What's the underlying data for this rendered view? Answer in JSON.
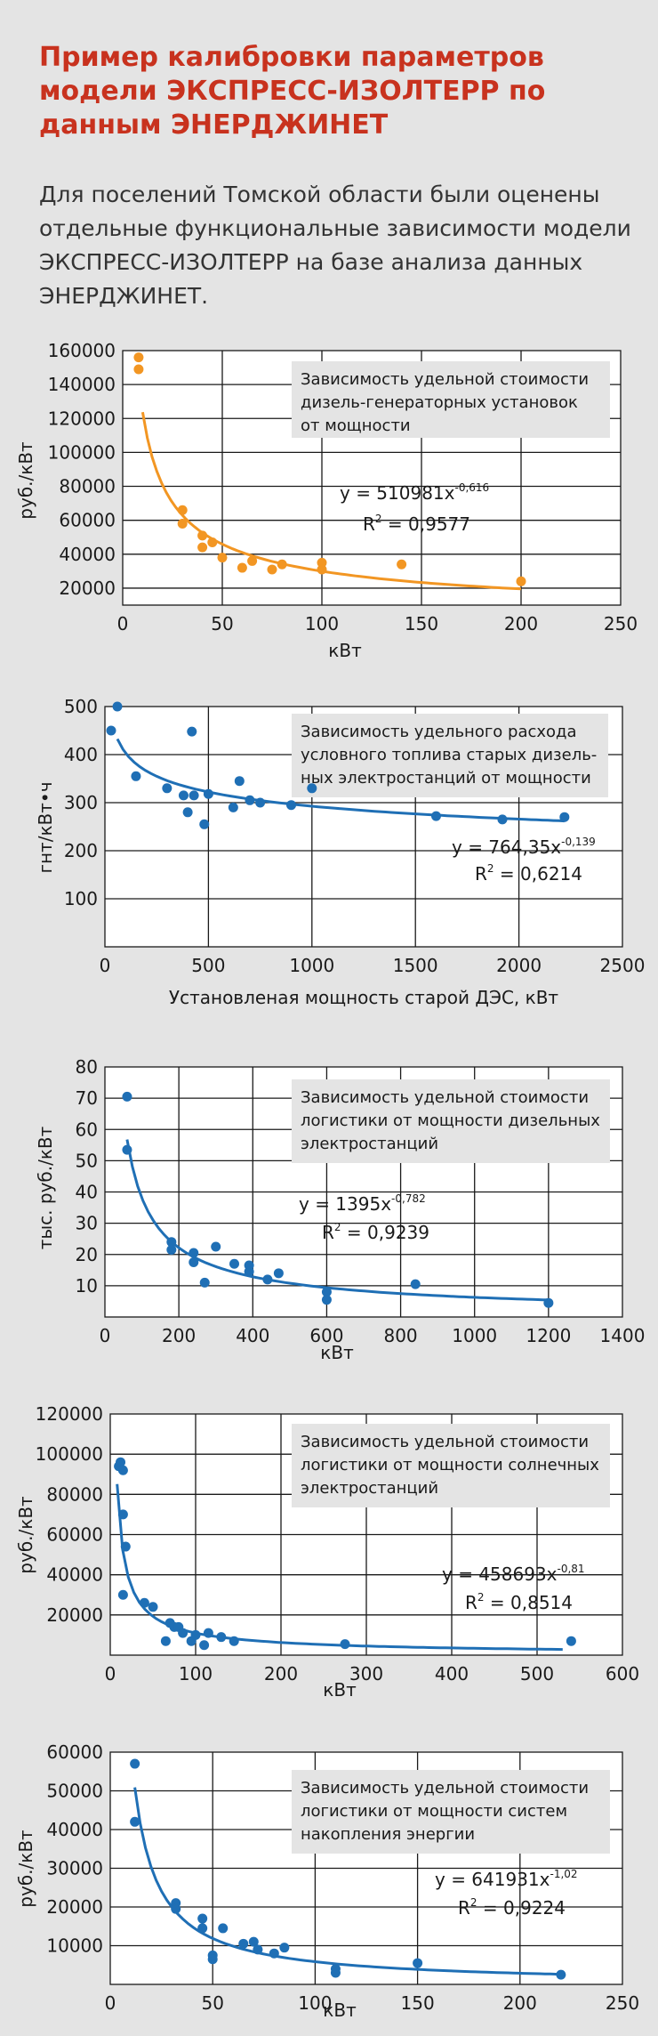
{
  "header": {
    "title": "Пример калибровки параметров модели ЭКСПРЕСС-ИЗОЛТЕРР по данным ЭНЕРДЖИНЕТ",
    "intro": "Для поселений Томской области были оценены отдельные функциональные зависимости модели ЭКСПРЕСС-ИЗОЛТЕРР на базе анализа данных ЭНЕРДЖИНЕТ."
  },
  "chart_data": [
    {
      "type": "scatter",
      "caption": [
        "Зависимость удельной стоимости",
        "дизель-генераторных установок",
        "от мощности"
      ],
      "equation": {
        "base": "y = 510981x",
        "exponent": "-0,616",
        "r2_label": "R",
        "r2_value": " = 0,9577"
      },
      "xlabel": "кВт",
      "ylabel": "руб./кВт",
      "xlim": [
        0,
        250
      ],
      "ylim": [
        10000,
        160000
      ],
      "xticks": [
        0,
        50,
        100,
        150,
        200,
        250
      ],
      "yticks": [
        20000,
        40000,
        60000,
        80000,
        100000,
        120000,
        140000,
        160000
      ],
      "color": "#f29623",
      "fit": {
        "a": 510981,
        "b": -0.616,
        "x_from": 10,
        "x_to": 200
      },
      "points": [
        [
          8,
          156000
        ],
        [
          8,
          149000
        ],
        [
          30,
          66000
        ],
        [
          30,
          58000
        ],
        [
          40,
          51000
        ],
        [
          40,
          44000
        ],
        [
          45,
          47000
        ],
        [
          50,
          38000
        ],
        [
          60,
          32000
        ],
        [
          65,
          36000
        ],
        [
          75,
          31000
        ],
        [
          80,
          34000
        ],
        [
          100,
          35000
        ],
        [
          100,
          31000
        ],
        [
          140,
          34000
        ],
        [
          200,
          24000
        ]
      ]
    },
    {
      "type": "scatter",
      "caption": [
        "Зависимость удельного расхода",
        "условного топлива старых дизель-",
        "ных электростанций от мощности"
      ],
      "equation": {
        "base": "y = 764,35x",
        "exponent": "-0,139",
        "r2_label": "R",
        "r2_value": " = 0,6214"
      },
      "xlabel": "Установленая мощность старой ДЭС, кВт",
      "ylabel": "гнт/кВт•ч",
      "xlim": [
        0,
        2500
      ],
      "ylim": [
        0,
        500
      ],
      "xticks": [
        0,
        500,
        1000,
        1500,
        2000,
        2500
      ],
      "yticks": [
        100,
        200,
        300,
        400,
        500
      ],
      "color": "#1f6fb5",
      "fit": {
        "a": 764.35,
        "b": -0.139,
        "x_from": 60,
        "x_to": 2220
      },
      "points": [
        [
          30,
          450
        ],
        [
          60,
          500
        ],
        [
          150,
          355
        ],
        [
          300,
          330
        ],
        [
          380,
          315
        ],
        [
          400,
          280
        ],
        [
          420,
          448
        ],
        [
          430,
          315
        ],
        [
          480,
          255
        ],
        [
          500,
          318
        ],
        [
          620,
          290
        ],
        [
          650,
          345
        ],
        [
          700,
          305
        ],
        [
          750,
          300
        ],
        [
          900,
          295
        ],
        [
          1000,
          330
        ],
        [
          1600,
          272
        ],
        [
          1920,
          265
        ],
        [
          2220,
          270
        ]
      ]
    },
    {
      "type": "scatter",
      "caption": [
        "Зависимость удельной стоимости",
        "логистики от мощности дизельных",
        "электростанций"
      ],
      "equation": {
        "base": "y = 1395x",
        "exponent": "-0,782",
        "r2_label": "R",
        "r2_value": " = 0,9239"
      },
      "xlabel": "кВт",
      "ylabel": "тыс. руб./кВт",
      "xlim": [
        0,
        1400
      ],
      "ylim": [
        0,
        80
      ],
      "xticks": [
        0,
        200,
        400,
        600,
        800,
        1000,
        1200,
        1400
      ],
      "yticks": [
        10,
        20,
        30,
        40,
        50,
        60,
        70,
        80
      ],
      "color": "#1f6fb5",
      "fit": {
        "a": 1395,
        "b": -0.782,
        "x_from": 60,
        "x_to": 1200
      },
      "points": [
        [
          60,
          70.5
        ],
        [
          60,
          53.5
        ],
        [
          180,
          24
        ],
        [
          180,
          21.5
        ],
        [
          240,
          20.5
        ],
        [
          240,
          17.5
        ],
        [
          270,
          11
        ],
        [
          300,
          22.5
        ],
        [
          350,
          17
        ],
        [
          390,
          16.5
        ],
        [
          390,
          14.5
        ],
        [
          440,
          12
        ],
        [
          470,
          14
        ],
        [
          600,
          8
        ],
        [
          600,
          5.5
        ],
        [
          840,
          10.5
        ],
        [
          1200,
          4.5
        ]
      ]
    },
    {
      "type": "scatter",
      "caption": [
        "Зависимость удельной стоимости",
        "логистики от мощности солнечных",
        "электростанций"
      ],
      "equation": {
        "base": "y = 458693x",
        "exponent": "-0,81",
        "r2_label": "R",
        "r2_value": " = 0,8514"
      },
      "xlabel": "кВт",
      "ylabel": "руб./кВт",
      "xlim": [
        0,
        600
      ],
      "ylim": [
        0,
        120000
      ],
      "xticks": [
        0,
        100,
        200,
        300,
        400,
        500,
        600
      ],
      "yticks": [
        20000,
        40000,
        60000,
        80000,
        100000,
        120000
      ],
      "color": "#1f6fb5",
      "fit": {
        "a": 458693,
        "b": -0.81,
        "x_from": 8,
        "x_to": 530
      },
      "points": [
        [
          10,
          94000
        ],
        [
          12,
          96000
        ],
        [
          15,
          92000
        ],
        [
          15,
          70000
        ],
        [
          15,
          30000
        ],
        [
          18,
          54000
        ],
        [
          40,
          26000
        ],
        [
          50,
          24000
        ],
        [
          65,
          7000
        ],
        [
          70,
          16000
        ],
        [
          75,
          14000
        ],
        [
          80,
          14000
        ],
        [
          85,
          11000
        ],
        [
          95,
          7000
        ],
        [
          100,
          10000
        ],
        [
          110,
          5000
        ],
        [
          115,
          11000
        ],
        [
          130,
          9000
        ],
        [
          145,
          7000
        ],
        [
          275,
          5500
        ],
        [
          540,
          7000
        ]
      ]
    },
    {
      "type": "scatter",
      "caption": [
        "Зависимость удельной стоимости",
        "логистики от мощности систем",
        "накопления энергии"
      ],
      "equation": {
        "base": "y = 641931x",
        "exponent": "-1,02",
        "r2_label": "R",
        "r2_value": " = 0,9224"
      },
      "xlabel": "кВт",
      "ylabel": "руб./кВт",
      "xlim": [
        0,
        250
      ],
      "ylim": [
        0,
        60000
      ],
      "xticks": [
        0,
        50,
        100,
        150,
        200,
        250
      ],
      "yticks": [
        10000,
        20000,
        30000,
        40000,
        50000,
        60000
      ],
      "color": "#1f6fb5",
      "fit": {
        "a": 641931,
        "b": -1.02,
        "x_from": 12,
        "x_to": 220
      },
      "points": [
        [
          12,
          57000
        ],
        [
          12,
          42000
        ],
        [
          32,
          21000
        ],
        [
          32,
          19500
        ],
        [
          45,
          17000
        ],
        [
          45,
          14500
        ],
        [
          50,
          7500
        ],
        [
          50,
          6500
        ],
        [
          55,
          14500
        ],
        [
          65,
          10500
        ],
        [
          70,
          11000
        ],
        [
          72,
          9000
        ],
        [
          80,
          8000
        ],
        [
          85,
          9500
        ],
        [
          110,
          4000
        ],
        [
          110,
          3000
        ],
        [
          150,
          5500
        ],
        [
          220,
          2500
        ]
      ]
    }
  ]
}
